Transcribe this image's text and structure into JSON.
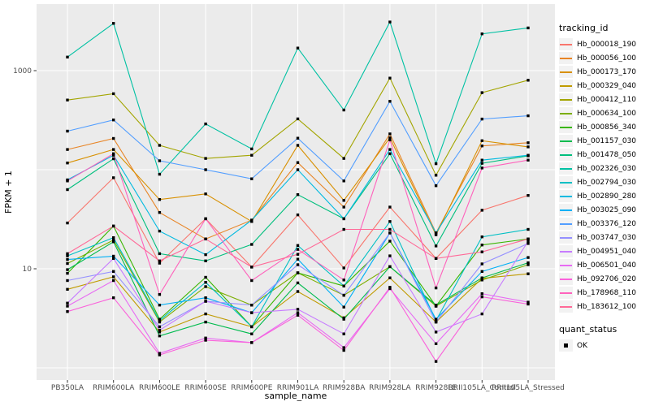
{
  "chart_data": {
    "type": "line",
    "title": "",
    "xlabel": "sample_name",
    "ylabel": "FPKM + 1",
    "y_scale": "log10",
    "ylim": [
      0.75,
      4700
    ],
    "grid": true,
    "y_ticks": [
      {
        "value": 1000,
        "label": "1000"
      },
      {
        "value": 10,
        "label": "10"
      }
    ],
    "y_gridlines": [
      1,
      10,
      100,
      1000
    ],
    "categories": [
      "PB350LA",
      "RRIM600LA",
      "RRIM600LE",
      "RRIM600SE",
      "RRIM600PE",
      "RRIM901LA",
      "RRIM928BA",
      "RRIM928LA",
      "RRIM928LE",
      "RRII105LA_Control",
      "RRII105LA_Stressed"
    ],
    "point_marker": "black-square",
    "series": [
      {
        "name": "Hb_000018_190",
        "color": "#F8766D",
        "values": [
          29,
          83,
          11.4,
          32,
          10.4,
          35,
          10.2,
          42,
          12.7,
          39,
          55
        ]
      },
      {
        "name": "Hb_000056_100",
        "color": "#E88526",
        "values": [
          160,
          207,
          37,
          20,
          31,
          118,
          42,
          230,
          23,
          174,
          187
        ]
      },
      {
        "name": "Hb_000173_170",
        "color": "#D89000",
        "values": [
          117,
          160,
          50,
          57,
          30,
          176,
          49,
          210,
          22,
          196,
          170
        ]
      },
      {
        "name": "Hb_000329_040",
        "color": "#C09B00",
        "values": [
          6.2,
          8.3,
          2.3,
          3.5,
          2.6,
          5.9,
          3.2,
          8.1,
          2.9,
          8.0,
          8.9
        ]
      },
      {
        "name": "Hb_000412_110",
        "color": "#A3A500",
        "values": [
          505,
          585,
          176,
          130,
          140,
          326,
          130,
          840,
          88,
          600,
          800
        ]
      },
      {
        "name": "Hb_000634_100",
        "color": "#7CAE00",
        "values": [
          11.3,
          19.5,
          2.9,
          6.6,
          4.3,
          9.1,
          5.4,
          10.5,
          4.2,
          7.7,
          11
        ]
      },
      {
        "name": "Hb_000856_340",
        "color": "#39B600",
        "values": [
          9.0,
          27,
          3.1,
          8.2,
          2.6,
          9.1,
          6.7,
          19,
          4.2,
          17.4,
          20
        ]
      },
      {
        "name": "Hb_001157_030",
        "color": "#00BB4E",
        "values": [
          9.8,
          18.7,
          2.1,
          2.9,
          2.2,
          7.2,
          3.1,
          10.5,
          4.3,
          8.1,
          11.5
        ]
      },
      {
        "name": "Hb_001478_050",
        "color": "#00BF7D",
        "values": [
          63,
          129,
          14.2,
          12,
          17.6,
          56,
          32,
          145,
          17,
          116,
          138
        ]
      },
      {
        "name": "Hb_002326_030",
        "color": "#00C1A3",
        "values": [
          1370,
          3000,
          90,
          290,
          162,
          1690,
          400,
          3100,
          115,
          2350,
          2700
        ]
      },
      {
        "name": "Hb_002794_030",
        "color": "#00BFC4",
        "values": [
          13.5,
          20.6,
          3.0,
          7.3,
          2.6,
          17.2,
          6.7,
          30,
          3.0,
          21,
          25
        ]
      },
      {
        "name": "Hb_002890_280",
        "color": "#00BAE0",
        "values": [
          79,
          140,
          24,
          13.9,
          31,
          100,
          32,
          160,
          23,
          125,
          140
        ]
      },
      {
        "name": "Hb_003025_090",
        "color": "#00B0F6",
        "values": [
          12.4,
          13.4,
          4.3,
          5.1,
          3.6,
          12.5,
          4.1,
          23,
          3.1,
          9.4,
          13
        ]
      },
      {
        "name": "Hb_003376_120",
        "color": "#529EFF",
        "values": [
          245,
          318,
          123,
          100,
          81,
          208,
          77,
          490,
          69,
          325,
          350
        ]
      },
      {
        "name": "Hb_003747_030",
        "color": "#9590FF",
        "values": [
          7.6,
          9.4,
          2.6,
          4.7,
          4.3,
          11,
          5.4,
          23,
          2.9,
          11.2,
          18
        ]
      },
      {
        "name": "Hb_004951_040",
        "color": "#C77CFF",
        "values": [
          4.5,
          12.7,
          2.4,
          4.7,
          3.6,
          3.9,
          2.2,
          13.5,
          2.3,
          3.5,
          19
        ]
      },
      {
        "name": "Hb_006501_040",
        "color": "#E76BF3",
        "values": [
          4.2,
          7.6,
          1.4,
          2.0,
          1.8,
          3.6,
          1.6,
          6.3,
          1.75,
          5.6,
          4.6
        ]
      },
      {
        "name": "Hb_092706_020",
        "color": "#FA62DB",
        "values": [
          3.7,
          5.1,
          1.35,
          1.9,
          1.8,
          3.4,
          1.5,
          6.5,
          1.16,
          5.2,
          4.4
        ]
      },
      {
        "name": "Hb_178968_110",
        "color": "#FF62BC",
        "values": [
          77,
          145,
          5.5,
          32,
          7.6,
          15.7,
          7.7,
          200,
          6.4,
          104,
          125
        ]
      },
      {
        "name": "Hb_183612_100",
        "color": "#FF6A98",
        "values": [
          14.2,
          27,
          12,
          20,
          10.4,
          14,
          25,
          25,
          12.7,
          14.8,
          20
        ]
      }
    ],
    "legend": {
      "position": "right",
      "color_title": "tracking_id",
      "shape_title": "quant_status",
      "shape_items": [
        {
          "label": "OK",
          "marker": "black-square"
        }
      ]
    },
    "style": {
      "panel_bg": "#EBEBEB",
      "grid_color": "#FFFFFF",
      "tick_color": "#333333",
      "tick_label_color": "#4D4D4D",
      "title_color": "#000000",
      "point_color": "#000000",
      "legend_key_bg": "#F2F2F2"
    }
  }
}
